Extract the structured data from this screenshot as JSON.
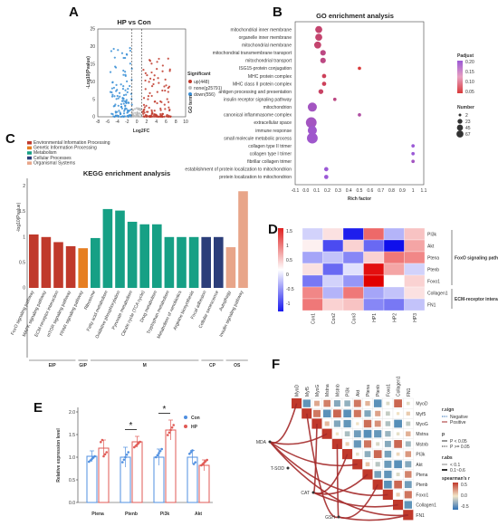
{
  "panels": {
    "a": "A",
    "b": "B",
    "c": "C",
    "d": "D",
    "e": "E",
    "f": "F"
  },
  "chart_data": [
    {
      "panel": "A",
      "type": "scatter",
      "title": "HP vs Con",
      "xlabel": "Log2FC",
      "ylabel": "-Log10(Pvalue)",
      "xlim": [
        -8,
        10
      ],
      "ylim": [
        0,
        25
      ],
      "xticks": [
        "-8",
        "-6",
        "-4",
        "-2",
        "0",
        "2",
        "4",
        "6",
        "8",
        "10"
      ],
      "yticks": [
        "0",
        "5",
        "10",
        "15",
        "20",
        "25"
      ],
      "legend_title": "Significant",
      "series": [
        {
          "name": "up(448)",
          "color": "#c0392b"
        },
        {
          "name": "none(g25791)",
          "color": "#bbbbbb"
        },
        {
          "name": "down(556)",
          "color": "#3a8fd6"
        }
      ],
      "thresholds": {
        "log2fc": [
          -1,
          1
        ]
      }
    },
    {
      "panel": "B",
      "type": "scatter",
      "title": "GO enrichment analysis",
      "xlabel": "Rich factor",
      "ylabel": "GO term",
      "xticks": [
        "-0.1",
        "0.0",
        "0.1",
        "0.2",
        "0.3",
        "0.4",
        "0.5",
        "0.6",
        "0.7",
        "0.8",
        "0.9",
        "1",
        "1.1"
      ],
      "xlim": [
        -0.1,
        1.1
      ],
      "terms": [
        "mitochondrial inner membrane",
        "organelle inner membrane",
        "mitochondrial membrane",
        "mitochondrial transmembrane transport",
        "mitochondrial transport",
        "ISG15-protein conjugation",
        "MHC protein complex",
        "MHC class II protein complex",
        "antigen processing and presentation",
        "insulin receptor signaling pathway",
        "mitochondrion",
        "canonical inflammasome complex",
        "extracellular space",
        "immune response",
        "small molecule metabolic process",
        "collagen type II trimer",
        "collagen type I trimer",
        "fibrillar collagen trimer",
        "establishment of protein localization to mitochondrion",
        "protein localization to mitochondrion"
      ],
      "rich_factor": [
        0.12,
        0.12,
        0.11,
        0.16,
        0.16,
        0.5,
        0.17,
        0.17,
        0.14,
        0.27,
        0.06,
        0.5,
        0.05,
        0.06,
        0.06,
        1.0,
        1.0,
        1.0,
        0.19,
        0.19
      ],
      "number": [
        23,
        23,
        23,
        12,
        12,
        2,
        5,
        5,
        8,
        2,
        45,
        2,
        67,
        45,
        67,
        2,
        2,
        2,
        5,
        5
      ],
      "padj": [
        0.1,
        0.1,
        0.1,
        0.12,
        0.12,
        0.05,
        0.08,
        0.08,
        0.09,
        0.12,
        0.18,
        0.15,
        0.18,
        0.19,
        0.19,
        0.2,
        0.2,
        0.18,
        0.2,
        0.2
      ],
      "legend_padj_title": "Padjust",
      "legend_padj": [
        "0.20",
        "0.15",
        "0.10",
        "0.05"
      ],
      "legend_number_title": "Number",
      "legend_number": [
        "2",
        "23",
        "45",
        "67"
      ]
    },
    {
      "panel": "C",
      "type": "bar",
      "title": "KEGG enrichment analysis",
      "ylabel": "-log10(Pvalue)",
      "yticks": [
        "0",
        "0.5",
        "1",
        "1.5",
        "2"
      ],
      "ylim": [
        0,
        2.1
      ],
      "legend": [
        {
          "name": "Environmental Information Processing",
          "color": "#c0392b"
        },
        {
          "name": "Genetic Information Processing",
          "color": "#e67e22"
        },
        {
          "name": "Metabolism",
          "color": "#16a085"
        },
        {
          "name": "Cellular Processes",
          "color": "#2c3e7a"
        },
        {
          "name": "Organismal Systems",
          "color": "#e8a589"
        }
      ],
      "categories": [
        "FoxO signaling pathway",
        "MAPK signaling pathway",
        "ECM-receptor interaction",
        "mTOR signaling pathway",
        "PPAR signaling pathway",
        "Ribosome",
        "Fatty acid metabolism",
        "Oxidative phosphorylation",
        "Pyruvate metabolism",
        "Citrate cycle (TCA cycle)",
        "Drug metabolism",
        "Tryptophan metabolism",
        "Metabolism of xenobiotics",
        "Arginine biosynthesis",
        "Focal adhesion",
        "Cellular senescence",
        "Autophagy",
        "Insulin signaling pathway"
      ],
      "values": [
        1.05,
        1.0,
        0.9,
        0.82,
        0.78,
        0.98,
        1.55,
        1.52,
        1.3,
        1.25,
        1.25,
        1.0,
        1.0,
        1.0,
        1.0,
        1.0,
        0.8,
        1.9
      ],
      "groups": [
        "EIP",
        "GIP",
        "M",
        "CP",
        "OS"
      ],
      "group_spans": [
        [
          0,
          3
        ],
        [
          4,
          4
        ],
        [
          5,
          13
        ],
        [
          14,
          15
        ],
        [
          16,
          17
        ]
      ]
    },
    {
      "panel": "D",
      "type": "heatmap",
      "rows": [
        "PI3k",
        "Akt",
        "Ptena",
        "Ptenb",
        "Foxo1",
        "Collagen1",
        "FN1"
      ],
      "cols": [
        "Con1",
        "Con2",
        "Con3",
        "HP1",
        "HP2",
        "HP3"
      ],
      "values": [
        [
          -0.3,
          0.2,
          -1.5,
          1.0,
          -0.5,
          0.4
        ],
        [
          0.1,
          -1.2,
          0.3,
          -1.0,
          -1.6,
          0.6
        ],
        [
          -0.6,
          -0.4,
          -0.8,
          0.3,
          0.9,
          0.8
        ],
        [
          0.2,
          -1.0,
          -0.2,
          1.6,
          0.6,
          -0.3
        ],
        [
          -0.9,
          -0.3,
          -0.7,
          1.7,
          0.0,
          0.3
        ],
        [
          0.8,
          -0.5,
          0.9,
          -0.6,
          -0.4,
          0.2
        ],
        [
          0.9,
          0.3,
          0.4,
          -0.8,
          -0.9,
          -0.4
        ]
      ],
      "scale_ticks": [
        "1.5",
        "1",
        "0.5",
        "0",
        "-0.5",
        "-1"
      ],
      "row_groups": [
        {
          "name": "FoxO signaling pathway",
          "rows": [
            0,
            4
          ]
        },
        {
          "name": "ECM-receptor interaction",
          "rows": [
            5,
            6
          ]
        }
      ]
    },
    {
      "panel": "E",
      "type": "bar",
      "ylabel": "Relative expression level",
      "categories": [
        "Ptena",
        "Ptenb",
        "Pi3k",
        "Akt"
      ],
      "yticks": [
        "0.0",
        "0.5",
        "1.0",
        "1.5",
        "2.0"
      ],
      "ylim": [
        0,
        2.0
      ],
      "series": [
        {
          "name": "Con",
          "color": "#4f8fe0",
          "values": [
            1.02,
            1.0,
            1.0,
            1.0
          ],
          "errors": [
            0.12,
            0.22,
            0.18,
            0.15
          ]
        },
        {
          "name": "HP",
          "color": "#e05a55",
          "values": [
            1.2,
            1.34,
            1.6,
            0.82
          ],
          "errors": [
            0.18,
            0.12,
            0.22,
            0.12
          ]
        }
      ],
      "significance": [
        "",
        "*",
        "*",
        ""
      ]
    },
    {
      "panel": "F",
      "type": "heatmap",
      "genes": [
        "MyoD",
        "Myf5",
        "MyoG",
        "Mstna",
        "Mstnb",
        "PI3k",
        "Akt",
        "Ptena",
        "Ptenb",
        "Foxo1",
        "Collagen1",
        "FN1"
      ],
      "traits": [
        "MDA",
        "T-SOD",
        "CAT",
        "GSH"
      ],
      "legend_sign_title": "r.sign",
      "legend_sign": [
        "Negative",
        "Positive"
      ],
      "legend_p_title": "p",
      "legend_p": [
        "P < 0.05",
        "P >= 0.05"
      ],
      "legend_rabs_title": "r.abs",
      "legend_rabs": [
        "< 0.1",
        "0.1~0.6"
      ],
      "legend_r_title": "spearman's r",
      "legend_r": [
        "0.5",
        "0.0",
        "-0.5"
      ]
    }
  ]
}
